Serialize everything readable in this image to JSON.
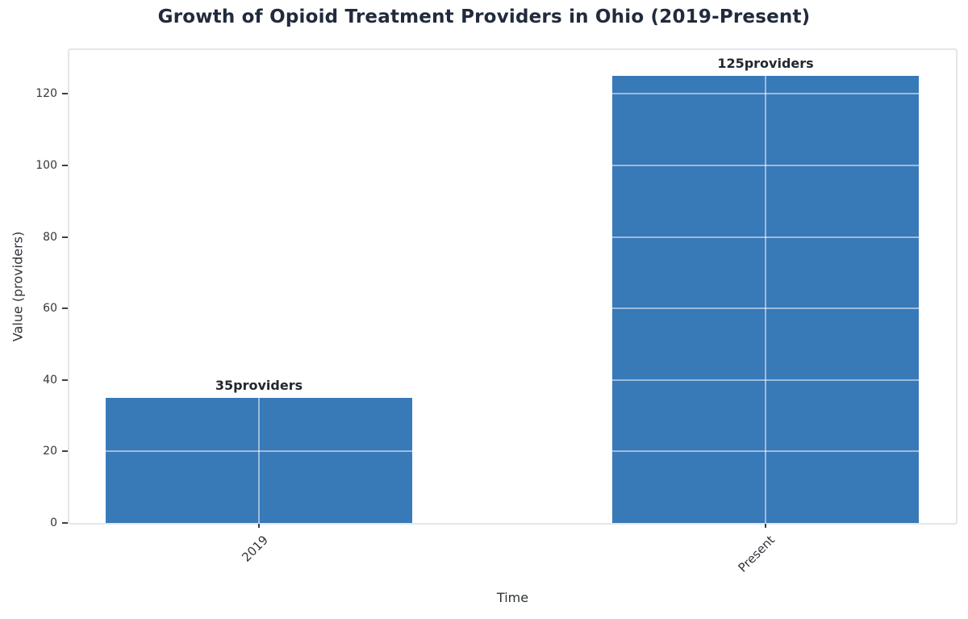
{
  "chart_data": {
    "type": "bar",
    "title": "Growth of Opioid Treatment Providers in Ohio (2019-Present)",
    "xlabel": "Time",
    "ylabel": "Value (providers)",
    "categories": [
      "2019",
      "Present"
    ],
    "values": [
      35,
      125
    ],
    "bar_labels": [
      "35providers",
      "125providers"
    ],
    "yticks": [
      0,
      20,
      40,
      60,
      80,
      100,
      120
    ],
    "ylim": [
      0,
      132.5
    ],
    "grid": true,
    "legend": "none",
    "colors": {
      "bar": "#3879b8",
      "grid_over_bar": "rgba(255,255,255,0.5)",
      "title": "#212b3c",
      "tick_label": "#33373c",
      "axis_label": "#2e3338",
      "annotation": "#23272e",
      "spine": "#e3e6ea",
      "tick_mark": "#3a3f44",
      "background": "#ffffff"
    }
  }
}
